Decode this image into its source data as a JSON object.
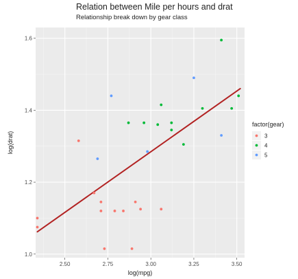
{
  "chart_data": {
    "type": "scatter",
    "title": "Relation between Mile per hours and drat",
    "subtitle": "Relationship break down by gear class",
    "xlabel": "log(mpg)",
    "ylabel": "log(drat)",
    "xlim": [
      2.33,
      3.545
    ],
    "ylim": [
      0.99,
      1.63
    ],
    "x_ticks": [
      2.5,
      2.75,
      3.0,
      3.25,
      3.5
    ],
    "x_tick_labels": [
      "2.50",
      "2.75",
      "3.00",
      "3.25",
      "3.50"
    ],
    "y_ticks": [
      1.0,
      1.2,
      1.4,
      1.6
    ],
    "y_tick_labels": [
      "1.0",
      "1.2",
      "1.4",
      "1.6"
    ],
    "grid": true,
    "legend": {
      "title": "factor(gear)",
      "position": "right",
      "entries": [
        {
          "label": "3",
          "color": "#F8766D"
        },
        {
          "label": "4",
          "color": "#00BA38"
        },
        {
          "label": "5",
          "color": "#619CFF"
        }
      ]
    },
    "series": [
      {
        "name": "3",
        "color": "#F8766D",
        "points": [
          [
            2.34,
            1.1
          ],
          [
            2.34,
            1.075
          ],
          [
            2.58,
            1.315
          ],
          [
            2.67,
            1.17
          ],
          [
            2.71,
            1.145
          ],
          [
            2.71,
            1.12
          ],
          [
            2.73,
            1.015
          ],
          [
            2.79,
            1.12
          ],
          [
            2.84,
            1.12
          ],
          [
            2.89,
            1.015
          ],
          [
            2.91,
            1.145
          ],
          [
            2.94,
            1.125
          ],
          [
            3.06,
            1.125
          ]
        ]
      },
      {
        "name": "4",
        "color": "#00BA38",
        "points": [
          [
            2.87,
            1.365
          ],
          [
            2.96,
            1.365
          ],
          [
            3.04,
            1.36
          ],
          [
            3.06,
            1.415
          ],
          [
            3.12,
            1.365
          ],
          [
            3.12,
            1.345
          ],
          [
            3.19,
            1.305
          ],
          [
            3.3,
            1.405
          ],
          [
            3.41,
            1.595
          ],
          [
            3.47,
            1.405
          ],
          [
            3.51,
            1.44
          ]
        ]
      },
      {
        "name": "5",
        "color": "#619CFF",
        "points": [
          [
            2.69,
            1.265
          ],
          [
            2.77,
            1.44
          ],
          [
            2.98,
            1.285
          ],
          [
            3.25,
            1.49
          ],
          [
            3.41,
            1.33
          ]
        ]
      }
    ],
    "trend_line": {
      "color": "#B22222",
      "from": [
        2.34,
        1.062
      ],
      "to": [
        3.52,
        1.46
      ]
    }
  }
}
